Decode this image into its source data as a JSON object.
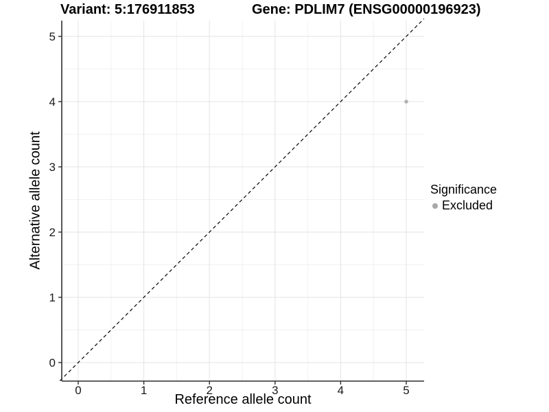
{
  "titles": {
    "variant": "Variant: 5:176911853",
    "gene": "Gene: PDLIM7 (ENSG00000196923)"
  },
  "chart_data": {
    "type": "scatter",
    "title_left": "Variant: 5:176911853",
    "title_right": "Gene: PDLIM7 (ENSG00000196923)",
    "xlabel": "Reference allele count",
    "ylabel": "Alternative allele count",
    "x_ticks": [
      0,
      1,
      2,
      3,
      4,
      5
    ],
    "y_ticks": [
      0,
      1,
      2,
      3,
      4,
      5
    ],
    "xlim": [
      -0.25,
      5.27
    ],
    "ylim": [
      -0.28,
      5.24
    ],
    "grid": "major+minor",
    "minor_step": 0.5,
    "series": [
      {
        "name": "Excluded",
        "points": [
          {
            "x": 5,
            "y": 4
          }
        ]
      }
    ],
    "reference_line": {
      "type": "identity y=x",
      "style": "dashed",
      "from": [
        -0.28,
        -0.28
      ],
      "to": [
        5.27,
        5.27
      ]
    },
    "legend": {
      "title": "Significance",
      "position": "right",
      "entries": [
        {
          "label": "Excluded"
        }
      ]
    }
  },
  "colors": {
    "point": "#b2b2b2",
    "legend_dot": "#a8a8a8",
    "grid_major": "#e3e3e3",
    "grid_minor": "#f1f1f1",
    "axis_line": "#2d2d2d",
    "dashed_line": "#000000",
    "tick_label": "#1a1a1a",
    "background": "#ffffff"
  }
}
